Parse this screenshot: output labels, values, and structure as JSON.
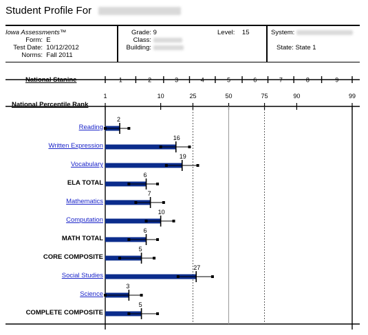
{
  "title": {
    "prefix": "Student Profile For"
  },
  "header": {
    "assessment": "Iowa Assessments™",
    "form_label": "Form:",
    "form_value": "E",
    "test_date_label": "Test Date:",
    "test_date_value": "10/12/2012",
    "norms_label": "Norms:",
    "norms_value": "Fall 2011",
    "grade_label": "Grade:",
    "grade_value": "9",
    "class_label": "Class:",
    "building_label": "Building:",
    "level_label": "Level:",
    "level_value": "15",
    "system_label": "System:",
    "state_label": "State:",
    "state_value": "State 1"
  },
  "chart_data": {
    "type": "bar",
    "stanine_axis_label": "National Stanine",
    "stanine_ticks": [
      "1",
      "2",
      "3",
      "4",
      "5",
      "6",
      "7",
      "8",
      "9"
    ],
    "percentile_axis_label": "National Percentile Rank",
    "percentile_ticks": [
      "1",
      "10",
      "25",
      "50",
      "75",
      "90",
      "99"
    ],
    "reference_lines": [
      25,
      50,
      75
    ],
    "bar_color": "#0b2c8c",
    "categories": [
      "Reading",
      "Written Expression",
      "Vocabulary",
      "ELA TOTAL",
      "Mathematics",
      "Computation",
      "MATH TOTAL",
      "CORE COMPOSITE",
      "Social Studies",
      "Science",
      "COMPLETE COMPOSITE"
    ],
    "category_style": [
      "link",
      "link",
      "link",
      "bold",
      "link",
      "link",
      "bold",
      "bold",
      "link",
      "link",
      "bold"
    ],
    "values": [
      2,
      16,
      19,
      6,
      7,
      10,
      6,
      5,
      27,
      3,
      5
    ],
    "error_low": [
      1,
      10,
      12,
      3,
      4,
      6,
      3,
      2,
      17,
      1,
      3
    ],
    "error_high": [
      3,
      23,
      28,
      9,
      11,
      15,
      9,
      8,
      38,
      5,
      9
    ]
  }
}
